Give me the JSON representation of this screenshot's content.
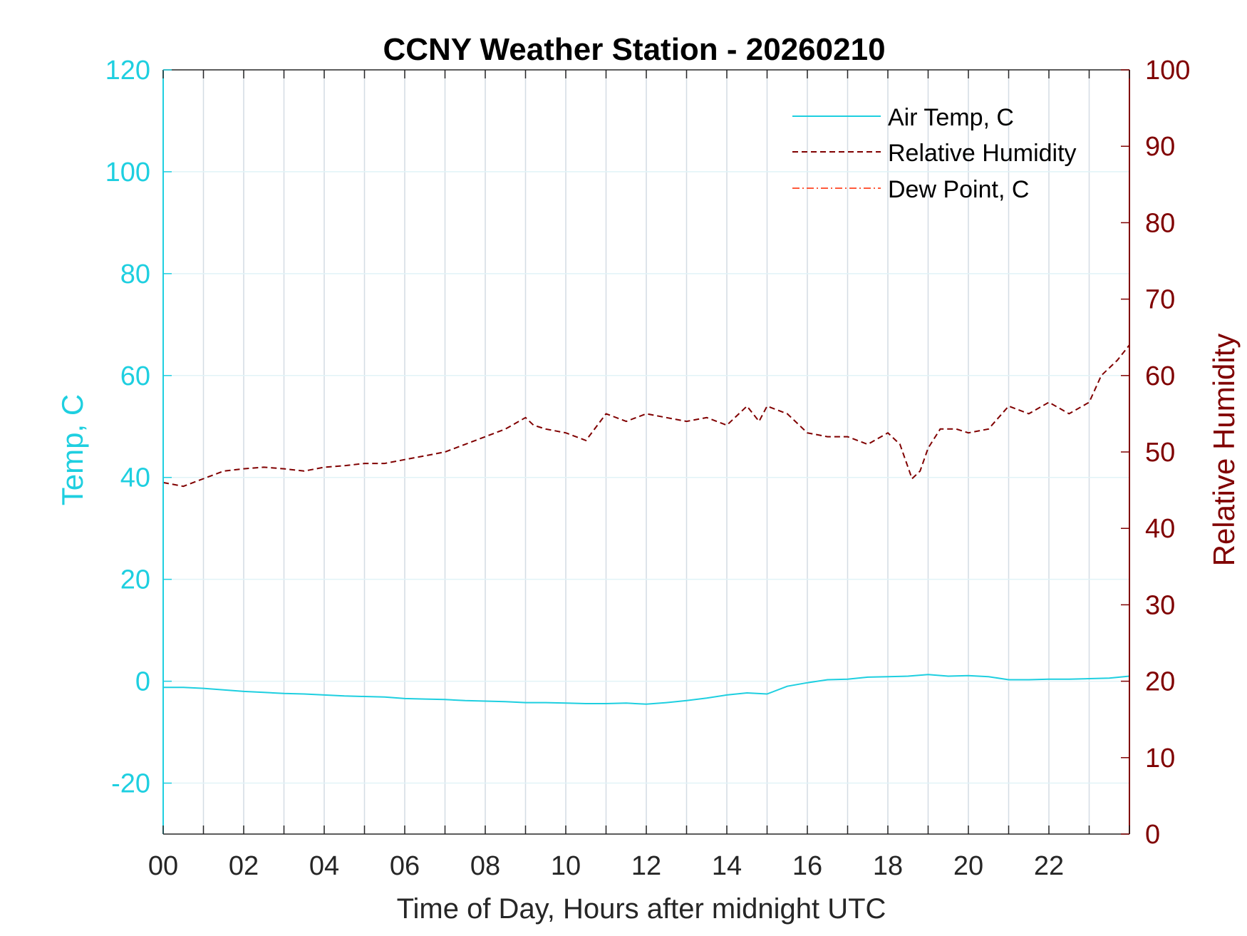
{
  "chart_data": {
    "type": "line",
    "title": "CCNY Weather Station - 20260210",
    "xlabel": "Time of Day, Hours after midnight UTC",
    "ylabel_left": "Temp, C",
    "ylabel_right": "Relative Humidity",
    "xlim": [
      0,
      24
    ],
    "ylim_left": [
      -30,
      120
    ],
    "ylim_right": [
      0,
      100
    ],
    "x_ticks": [
      0,
      2,
      4,
      6,
      8,
      10,
      12,
      14,
      16,
      18,
      20,
      22
    ],
    "x_tick_labels": [
      "00",
      "02",
      "04",
      "06",
      "08",
      "10",
      "12",
      "14",
      "16",
      "18",
      "20",
      "22"
    ],
    "y_left_ticks": [
      -20,
      0,
      20,
      40,
      60,
      80,
      100,
      120
    ],
    "y_right_ticks": [
      0,
      10,
      20,
      30,
      40,
      50,
      60,
      70,
      80,
      90,
      100
    ],
    "grid": true,
    "legend_position": "top-right",
    "colors": {
      "left_axis": "#1ecfe0",
      "right_axis": "#800000",
      "air_temp": "#1ecfe0",
      "relative_humidity": "#800000",
      "dew_point": "#ff5a3c",
      "grid": "#d4dce4",
      "axes": "#262626"
    },
    "series": [
      {
        "name": "Air Temp, C",
        "axis": "left",
        "style": "solid",
        "x": [
          0,
          0.5,
          1,
          1.5,
          2,
          2.5,
          3,
          3.5,
          4,
          4.5,
          5,
          5.5,
          6,
          6.5,
          7,
          7.5,
          8,
          8.5,
          9,
          9.5,
          10,
          10.5,
          11,
          11.5,
          12,
          12.5,
          13,
          13.5,
          14,
          14.5,
          15,
          15.5,
          16,
          16.5,
          17,
          17.5,
          18,
          18.5,
          19,
          19.5,
          20,
          20.5,
          21,
          21.5,
          22,
          22.5,
          23,
          23.5,
          24
        ],
        "y": [
          -1.2,
          -1.2,
          -1.4,
          -1.7,
          -2.0,
          -2.2,
          -2.4,
          -2.5,
          -2.7,
          -2.9,
          -3.0,
          -3.1,
          -3.4,
          -3.5,
          -3.6,
          -3.8,
          -3.9,
          -4.0,
          -4.2,
          -4.2,
          -4.3,
          -4.4,
          -4.4,
          -4.3,
          -4.5,
          -4.2,
          -3.8,
          -3.3,
          -2.7,
          -2.3,
          -2.5,
          -1.0,
          -0.3,
          0.3,
          0.4,
          0.8,
          0.9,
          1.0,
          1.3,
          1.0,
          1.1,
          0.9,
          0.3,
          0.3,
          0.4,
          0.4,
          0.5,
          0.6,
          1.0
        ]
      },
      {
        "name": "Relative Humidity",
        "axis": "right",
        "style": "dashed",
        "x": [
          0,
          0.5,
          1,
          1.5,
          2,
          2.5,
          3,
          3.5,
          4,
          4.5,
          5,
          5.5,
          6,
          6.5,
          7,
          7.5,
          8,
          8.5,
          9,
          9.2,
          9.5,
          10,
          10.5,
          11,
          11.5,
          12,
          12.5,
          13,
          13.5,
          14,
          14.5,
          14.8,
          15,
          15.5,
          16,
          16.5,
          17,
          17.5,
          18,
          18.3,
          18.6,
          18.8,
          19,
          19.3,
          19.7,
          20,
          20.5,
          21,
          21.5,
          22,
          22.5,
          23,
          23.3,
          23.7,
          24
        ],
        "y": [
          46.0,
          45.5,
          46.5,
          47.5,
          47.8,
          48.0,
          47.8,
          47.5,
          48.0,
          48.2,
          48.5,
          48.5,
          49.0,
          49.5,
          50.0,
          51.0,
          52.0,
          53.0,
          54.5,
          53.5,
          53.0,
          52.5,
          51.5,
          55.0,
          54.0,
          55.0,
          54.5,
          54.0,
          54.5,
          53.5,
          56.0,
          54.0,
          56.0,
          55.0,
          52.5,
          52.0,
          52.0,
          51.0,
          52.5,
          51.0,
          46.5,
          47.5,
          50.5,
          53.0,
          53.0,
          52.5,
          53.0,
          56.0,
          55.0,
          56.5,
          55.0,
          56.5,
          60.0,
          62.0,
          64.0
        ]
      },
      {
        "name": "Dew Point, C",
        "axis": "left",
        "style": "dash-dot",
        "x": [],
        "y": []
      }
    ]
  }
}
